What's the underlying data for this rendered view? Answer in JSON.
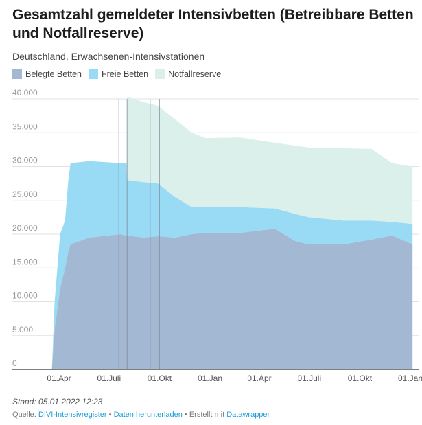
{
  "chart_data": {
    "type": "area",
    "stacked": true,
    "title": "Gesamtzahl gemeldeter Intensivbetten (Betreibbare Betten und Notfallreserve)",
    "subtitle": "Deutschland, Erwachsenen-Intensivstationen",
    "xlabel": "",
    "ylabel": "",
    "ylim": [
      0,
      40000
    ],
    "y_ticks": [
      0,
      5000,
      10000,
      15000,
      20000,
      25000,
      30000,
      35000,
      40000
    ],
    "y_tick_labels": [
      "0",
      "5.000",
      "10.000",
      "15.000",
      "20.000",
      "25.000",
      "30.000",
      "35.000",
      "40.000"
    ],
    "x_ticks": [
      "2020-04-01",
      "2020-07-01",
      "2020-10-01",
      "2021-01-01",
      "2021-04-01",
      "2021-07-01",
      "2021-10-01",
      "2022-01-01"
    ],
    "x_tick_labels": [
      "01.Apr",
      "01.Juli",
      "01.Okt",
      "01.Jan",
      "01.Apr",
      "01.Juli",
      "01.Okt",
      "01.Jan"
    ],
    "grid": true,
    "legend_position": "top-left",
    "x": [
      "2020-03-19",
      "2020-03-24",
      "2020-04-03",
      "2020-04-12",
      "2020-04-18",
      "2020-04-22",
      "2020-05-26",
      "2020-07-22",
      "2020-08-02",
      "2020-08-03",
      "2020-09-03",
      "2020-09-28",
      "2020-10-29",
      "2020-11-29",
      "2020-12-24",
      "2021-02-25",
      "2021-04-29",
      "2021-06-05",
      "2021-06-30",
      "2021-09-01",
      "2021-10-22",
      "2021-11-29",
      "2022-01-05"
    ],
    "series": [
      {
        "name": "Belegte Betten",
        "color": "#a3b8d2",
        "values": [
          0,
          6000,
          12000,
          15000,
          17500,
          18500,
          19500,
          20000,
          19800,
          19800,
          19500,
          19700,
          19500,
          20000,
          20200,
          20200,
          20800,
          19000,
          18500,
          18500,
          19200,
          19800,
          18500
        ]
      },
      {
        "name": "Freie Betten",
        "color": "#99dbf5",
        "values": [
          0,
          4000,
          8000,
          7000,
          10500,
          12000,
          11300,
          10500,
          10700,
          8200,
          8200,
          7800,
          6000,
          4000,
          3800,
          3800,
          3000,
          4000,
          4000,
          3500,
          2800,
          2000,
          3000
        ]
      },
      {
        "name": "Notfallreserve",
        "color": "#dbf0ea",
        "values": [
          0,
          0,
          0,
          0,
          0,
          0,
          0,
          0,
          0,
          12300,
          11800,
          11500,
          11500,
          11000,
          10200,
          10300,
          9700,
          10100,
          10300,
          10700,
          10600,
          8700,
          8500
        ]
      }
    ],
    "annotation_lines": [
      "2020-07-19",
      "2020-08-03",
      "2020-09-14",
      "2020-10-01"
    ]
  },
  "stand": "Stand: 05.01.2022 12:23",
  "source": {
    "prefix": "Quelle:",
    "link1": "DIVI-Intensivregister",
    "sep1": "•",
    "link2": "Daten herunterladen",
    "sep2": "• Erstellt mit",
    "link3": "Datawrapper"
  }
}
